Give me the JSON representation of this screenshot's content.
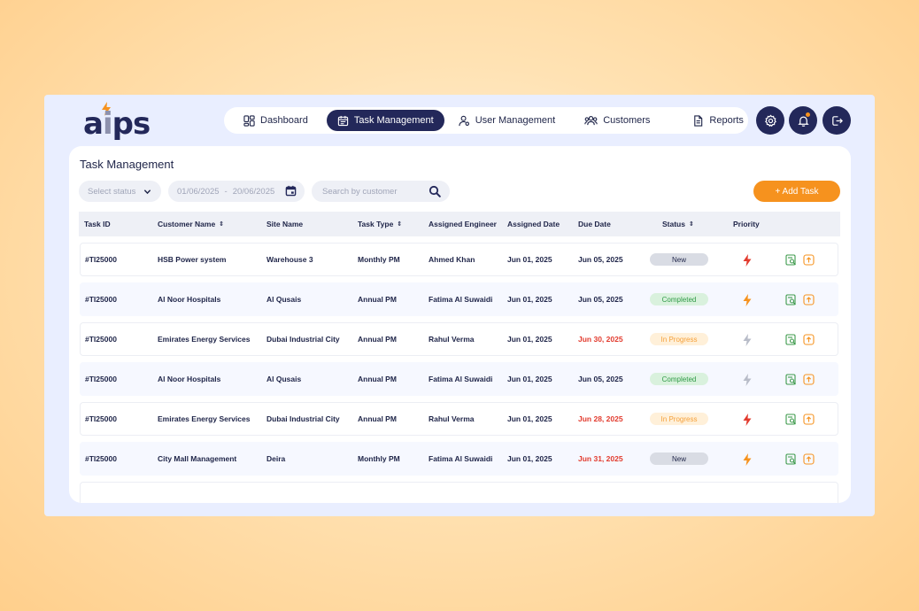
{
  "app": {
    "logo_text": "aips"
  },
  "nav": {
    "items": [
      {
        "label": "Dashboard",
        "icon": "grid-icon"
      },
      {
        "label": "Task Management",
        "icon": "calendar-icon",
        "active": true
      },
      {
        "label": "User Management",
        "icon": "user-gear-icon"
      },
      {
        "label": "Customers",
        "icon": "users-icon"
      },
      {
        "label": "Reports",
        "icon": "document-icon"
      }
    ],
    "actions": [
      "settings-icon",
      "bell-icon",
      "logout-icon"
    ]
  },
  "page": {
    "title": "Task Management",
    "filters": {
      "status_placeholder": "Select status",
      "date_from": "01/06/2025",
      "date_sep": "-",
      "date_to": "20/06/2025",
      "search_placeholder": "Search by customer"
    },
    "add_button": "+ Add Task"
  },
  "table": {
    "columns": [
      "Task ID",
      "Customer Name",
      "Site Name",
      "Task Type",
      "Assigned Engineer",
      "Assigned Date",
      "Due Date",
      "Status",
      "Priority"
    ],
    "rows": [
      {
        "id": "#TI25000",
        "customer": "HSB Power system",
        "site": "Warehouse 3",
        "type": "Monthly PM",
        "engineer": "Ahmed Khan",
        "assigned": "Jun 01, 2025",
        "due": "Jun 05, 2025",
        "due_overdue": false,
        "status": "New",
        "priority": "high"
      },
      {
        "id": "#TI25000",
        "customer": "Al Noor Hospitals",
        "site": "Al Qusais",
        "type": "Annual PM",
        "engineer": "Fatima Al Suwaidi",
        "assigned": "Jun 01, 2025",
        "due": "Jun 05, 2025",
        "due_overdue": false,
        "status": "Completed",
        "priority": "medium"
      },
      {
        "id": "#TI25000",
        "customer": "Emirates Energy Services",
        "site": "Dubai Industrial City",
        "type": "Annual PM",
        "engineer": "Rahul Verma",
        "assigned": "Jun 01, 2025",
        "due": "Jun 30, 2025",
        "due_overdue": true,
        "status": "In Progress",
        "priority": "low"
      },
      {
        "id": "#TI25000",
        "customer": "Al Noor Hospitals",
        "site": "Al Qusais",
        "type": "Annual PM",
        "engineer": "Fatima Al Suwaidi",
        "assigned": "Jun 01, 2025",
        "due": "Jun 05, 2025",
        "due_overdue": false,
        "status": "Completed",
        "priority": "low"
      },
      {
        "id": "#TI25000",
        "customer": "Emirates Energy Services",
        "site": "Dubai Industrial City",
        "type": "Annual PM",
        "engineer": "Rahul Verma",
        "assigned": "Jun 01, 2025",
        "due": "Jun 28, 2025",
        "due_overdue": true,
        "status": "In Progress",
        "priority": "high"
      },
      {
        "id": "#TI25000",
        "customer": "City Mall Management",
        "site": "Deira",
        "type": "Monthly PM",
        "engineer": "Fatima Al Suwaidi",
        "assigned": "Jun 01, 2025",
        "due": "Jun 31, 2025",
        "due_overdue": true,
        "status": "New",
        "priority": "medium"
      }
    ]
  },
  "colors": {
    "navy": "#23285a",
    "accent": "#f6921e",
    "priority_high": "#e23b2e",
    "priority_medium": "#f6921e",
    "priority_low": "#b8bcc8",
    "overdue": "#e23b2e"
  }
}
